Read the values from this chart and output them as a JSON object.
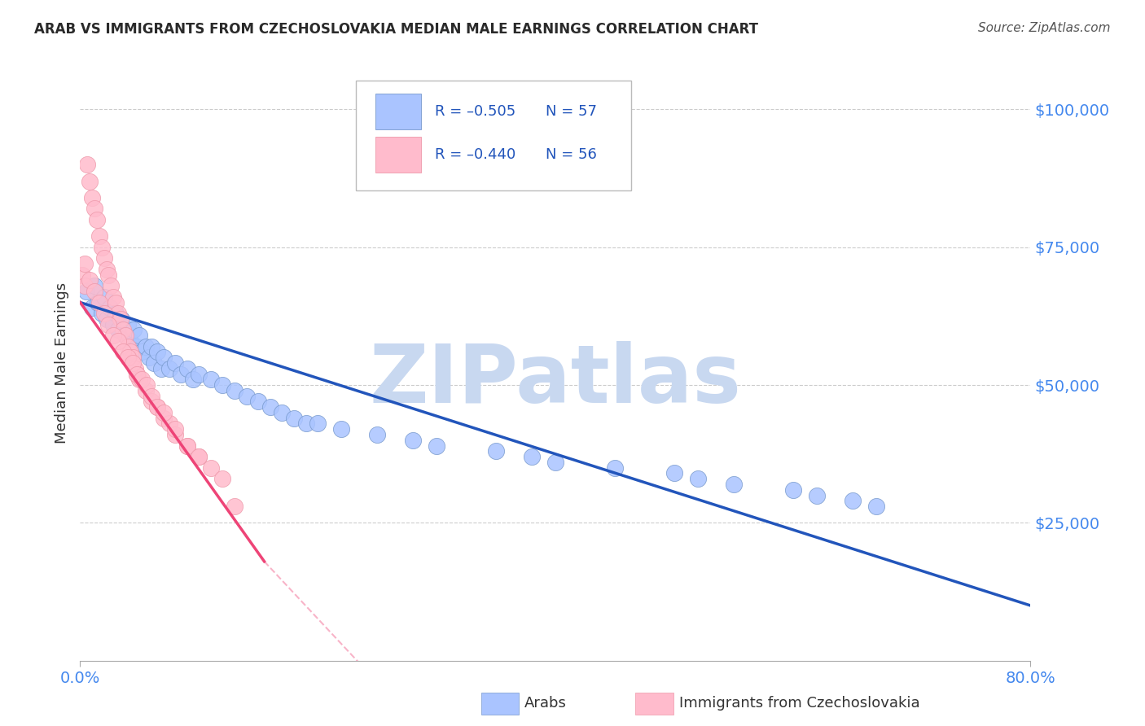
{
  "title": "ARAB VS IMMIGRANTS FROM CZECHOSLOVAKIA MEDIAN MALE EARNINGS CORRELATION CHART",
  "source": "Source: ZipAtlas.com",
  "ylabel": "Median Male Earnings",
  "y_ticks": [
    0,
    25000,
    50000,
    75000,
    100000
  ],
  "y_tick_labels": [
    "",
    "$25,000",
    "$50,000",
    "$75,000",
    "$100,000"
  ],
  "xlim": [
    0.0,
    0.8
  ],
  "ylim": [
    0,
    108000
  ],
  "legend_r_blue": "R = –0.505",
  "legend_n_blue": "N = 57",
  "legend_r_pink": "R = –0.440",
  "legend_n_pink": "N = 56",
  "legend_label_blue": "Arabs",
  "legend_label_pink": "Immigrants from Czechoslovakia",
  "title_color": "#2a2a2a",
  "source_color": "#555555",
  "axis_label_color": "#333333",
  "y_tick_color": "#4488ee",
  "x_tick_color": "#4488ee",
  "blue_scatter_color": "#aac4ff",
  "pink_scatter_color": "#ffbbcc",
  "blue_edge_color": "#7799cc",
  "pink_edge_color": "#ee99aa",
  "blue_line_color": "#2255bb",
  "pink_line_color": "#ee4477",
  "grid_color": "#cccccc",
  "watermark_color": "#c8d8f0",
  "blue_x": [
    0.005,
    0.01,
    0.012,
    0.015,
    0.018,
    0.02,
    0.022,
    0.025,
    0.028,
    0.03,
    0.032,
    0.035,
    0.038,
    0.04,
    0.042,
    0.045,
    0.048,
    0.05,
    0.052,
    0.055,
    0.058,
    0.06,
    0.062,
    0.065,
    0.068,
    0.07,
    0.075,
    0.08,
    0.085,
    0.09,
    0.095,
    0.1,
    0.11,
    0.12,
    0.13,
    0.14,
    0.15,
    0.16,
    0.17,
    0.18,
    0.19,
    0.2,
    0.22,
    0.25,
    0.28,
    0.3,
    0.35,
    0.38,
    0.4,
    0.45,
    0.5,
    0.52,
    0.55,
    0.6,
    0.62,
    0.65,
    0.67
  ],
  "blue_y": [
    67000,
    64000,
    68000,
    65000,
    63000,
    66000,
    62000,
    64000,
    61000,
    63000,
    60000,
    62000,
    59000,
    61000,
    58000,
    60000,
    57000,
    59000,
    56000,
    57000,
    55000,
    57000,
    54000,
    56000,
    53000,
    55000,
    53000,
    54000,
    52000,
    53000,
    51000,
    52000,
    51000,
    50000,
    49000,
    48000,
    47000,
    46000,
    45000,
    44000,
    43000,
    43000,
    42000,
    41000,
    40000,
    39000,
    38000,
    37000,
    36000,
    35000,
    34000,
    33000,
    32000,
    31000,
    30000,
    29000,
    28000
  ],
  "pink_x": [
    0.002,
    0.004,
    0.006,
    0.008,
    0.01,
    0.012,
    0.014,
    0.016,
    0.018,
    0.02,
    0.022,
    0.024,
    0.026,
    0.028,
    0.03,
    0.032,
    0.034,
    0.036,
    0.038,
    0.04,
    0.042,
    0.044,
    0.046,
    0.048,
    0.05,
    0.055,
    0.06,
    0.065,
    0.07,
    0.075,
    0.08,
    0.09,
    0.1,
    0.11,
    0.12,
    0.13,
    0.004,
    0.008,
    0.012,
    0.016,
    0.02,
    0.024,
    0.028,
    0.032,
    0.036,
    0.04,
    0.044,
    0.048,
    0.052,
    0.056,
    0.06,
    0.065,
    0.07,
    0.08,
    0.09,
    0.1
  ],
  "pink_y": [
    70000,
    68000,
    90000,
    87000,
    84000,
    82000,
    80000,
    77000,
    75000,
    73000,
    71000,
    70000,
    68000,
    66000,
    65000,
    63000,
    62000,
    60000,
    59000,
    57000,
    56000,
    55000,
    53000,
    52000,
    51000,
    49000,
    47000,
    46000,
    44000,
    43000,
    41000,
    39000,
    37000,
    35000,
    33000,
    28000,
    72000,
    69000,
    67000,
    65000,
    63000,
    61000,
    59000,
    58000,
    56000,
    55000,
    54000,
    52000,
    51000,
    50000,
    48000,
    46000,
    45000,
    42000,
    39000,
    37000
  ]
}
